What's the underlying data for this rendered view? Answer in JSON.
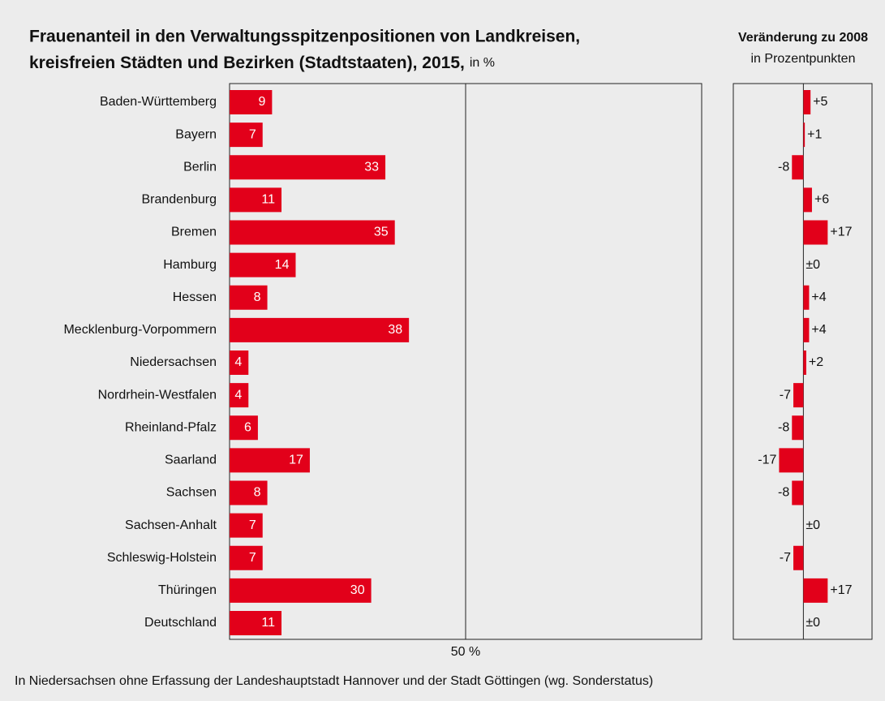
{
  "chart_data": [
    {
      "type": "barh",
      "title": [
        "Frauenanteil in den Verwaltungsspitzenpositionen von Landkreisen,",
        "kreisfreien Städten und Bezirken (Stadtstaaten), 2015,"
      ],
      "unit": "in %",
      "categories": [
        "Baden-Württemberg",
        "Bayern",
        "Berlin",
        "Brandenburg",
        "Bremen",
        "Hamburg",
        "Hessen",
        "Mecklenburg-Vorpommern",
        "Niedersachsen",
        "Nordrhein-Westfalen",
        "Rheinland-Pfalz",
        "Saarland",
        "Sachsen",
        "Sachsen-Anhalt",
        "Schleswig-Holstein",
        "Thüringen",
        "Deutschland"
      ],
      "values": [
        9,
        7,
        33,
        11,
        35,
        14,
        8,
        38,
        4,
        4,
        6,
        17,
        8,
        7,
        7,
        30,
        11
      ],
      "color": "#e2001a",
      "xlim": [
        0,
        100
      ],
      "xticks": [
        {
          "value": 50,
          "label": "50 %"
        }
      ],
      "grid": true
    },
    {
      "type": "barh-change",
      "title": "Veränderung zu 2008",
      "subtitle": "in Prozentpunkten",
      "values": [
        5,
        1,
        -8,
        6,
        17,
        0,
        4,
        4,
        2,
        -7,
        -8,
        -17,
        -8,
        0,
        -7,
        17,
        0
      ],
      "value_labels": [
        "+5",
        "+1",
        "-8",
        "+6",
        "+17",
        "±0",
        "+4",
        "+4",
        "+2",
        "-7",
        "-8",
        "-17",
        "-8",
        "±0",
        "-7",
        "+17",
        "±0"
      ],
      "color": "#e2001a",
      "xlim": [
        -49,
        48
      ]
    }
  ],
  "footnote": "In Niedersachsen ohne Erfassung der Landeshauptstadt Hannover und der Stadt Göttingen (wg. Sonderstatus)"
}
